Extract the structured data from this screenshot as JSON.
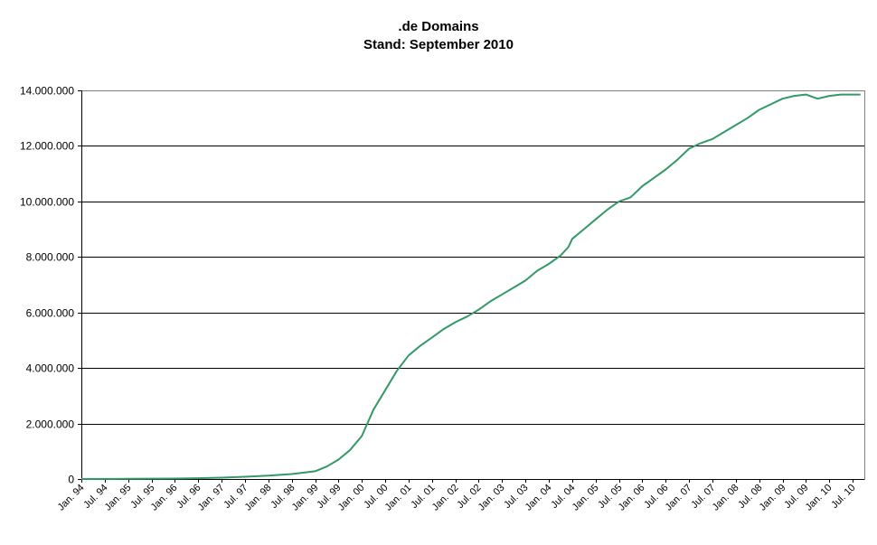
{
  "chart_data": {
    "type": "line",
    "title": ".de Domains",
    "subtitle": "Stand: September 2010",
    "xlabel": "",
    "ylabel": "",
    "ylim": [
      0,
      14000000
    ],
    "y_ticks": [
      0,
      2000000,
      4000000,
      6000000,
      8000000,
      10000000,
      12000000,
      14000000
    ],
    "y_tick_labels": [
      "0",
      "2.000.000",
      "4.000.000",
      "6.000.000",
      "8.000.000",
      "10.000.000",
      "12.000.000",
      "14.000.000"
    ],
    "grid": "horizontal",
    "legend": "none",
    "x_ticks": [
      "1994-01",
      "1994-07",
      "1995-01",
      "1995-07",
      "1996-01",
      "1996-07",
      "1997-01",
      "1997-07",
      "1998-01",
      "1998-07",
      "1999-01",
      "1999-07",
      "2000-01",
      "2000-07",
      "2001-01",
      "2001-07",
      "2002-01",
      "2002-07",
      "2003-01",
      "2003-07",
      "2004-01",
      "2004-07",
      "2005-01",
      "2005-07",
      "2006-01",
      "2006-07",
      "2007-01",
      "2007-07",
      "2008-01",
      "2008-07",
      "2009-01",
      "2009-07",
      "2010-01",
      "2010-07"
    ],
    "x_tick_labels": [
      "Jan. 94",
      "Jul. 94",
      "Jan. 95",
      "Jul. 95",
      "Jan. 96",
      "Jul. 96",
      "Jan. 97",
      "Jul. 97",
      "Jan. 98",
      "Jul. 98",
      "Jan. 99",
      "Jul. 99",
      "Jan. 00",
      "Jul. 00",
      "Jan. 01",
      "Jul. 01",
      "Jan. 02",
      "Jul. 02",
      "Jan. 03",
      "Jul. 03",
      "Jan. 04",
      "Jul. 04",
      "Jan. 05",
      "Jul. 05",
      "Jan. 06",
      "Jul. 06",
      "Jan. 07",
      "Jul. 07",
      "Jan. 08",
      "Jul. 08",
      "Jan. 09",
      "Jul. 09",
      "Jan. 10",
      "Jul. 10"
    ],
    "x_range": [
      "1994-01",
      "2010-09"
    ],
    "series": [
      {
        "color": "#339966",
        "x": [
          "1994-01",
          "1995-01",
          "1996-01",
          "1996-07",
          "1997-01",
          "1997-07",
          "1998-01",
          "1998-07",
          "1999-01",
          "1999-04",
          "1999-07",
          "1999-10",
          "2000-01",
          "2000-04",
          "2000-07",
          "2000-10",
          "2001-01",
          "2001-04",
          "2001-07",
          "2001-10",
          "2002-01",
          "2002-04",
          "2002-07",
          "2002-10",
          "2003-01",
          "2003-04",
          "2003-07",
          "2003-10",
          "2004-01",
          "2004-04",
          "2004-06",
          "2004-07",
          "2004-10",
          "2005-01",
          "2005-04",
          "2005-07",
          "2005-10",
          "2006-01",
          "2006-04",
          "2006-07",
          "2006-10",
          "2007-01",
          "2007-04",
          "2007-07",
          "2007-10",
          "2008-01",
          "2008-04",
          "2008-07",
          "2008-10",
          "2009-01",
          "2009-04",
          "2009-07",
          "2009-10",
          "2010-01",
          "2010-04",
          "2010-07",
          "2010-09"
        ],
        "values": [
          0,
          5000,
          15000,
          30000,
          50000,
          80000,
          120000,
          180000,
          280000,
          450000,
          700000,
          1050000,
          1550000,
          2500000,
          3200000,
          3900000,
          4450000,
          4800000,
          5100000,
          5400000,
          5650000,
          5850000,
          6100000,
          6400000,
          6650000,
          6900000,
          7150000,
          7500000,
          7750000,
          8050000,
          8350000,
          8650000,
          9000000,
          9350000,
          9700000,
          10000000,
          10150000,
          10550000,
          10850000,
          11150000,
          11500000,
          11900000,
          12100000,
          12250000,
          12500000,
          12750000,
          13000000,
          13300000,
          13500000,
          13700000,
          13800000,
          13850000,
          13700000,
          13800000,
          13850000,
          13850000,
          13850000
        ]
      }
    ]
  }
}
